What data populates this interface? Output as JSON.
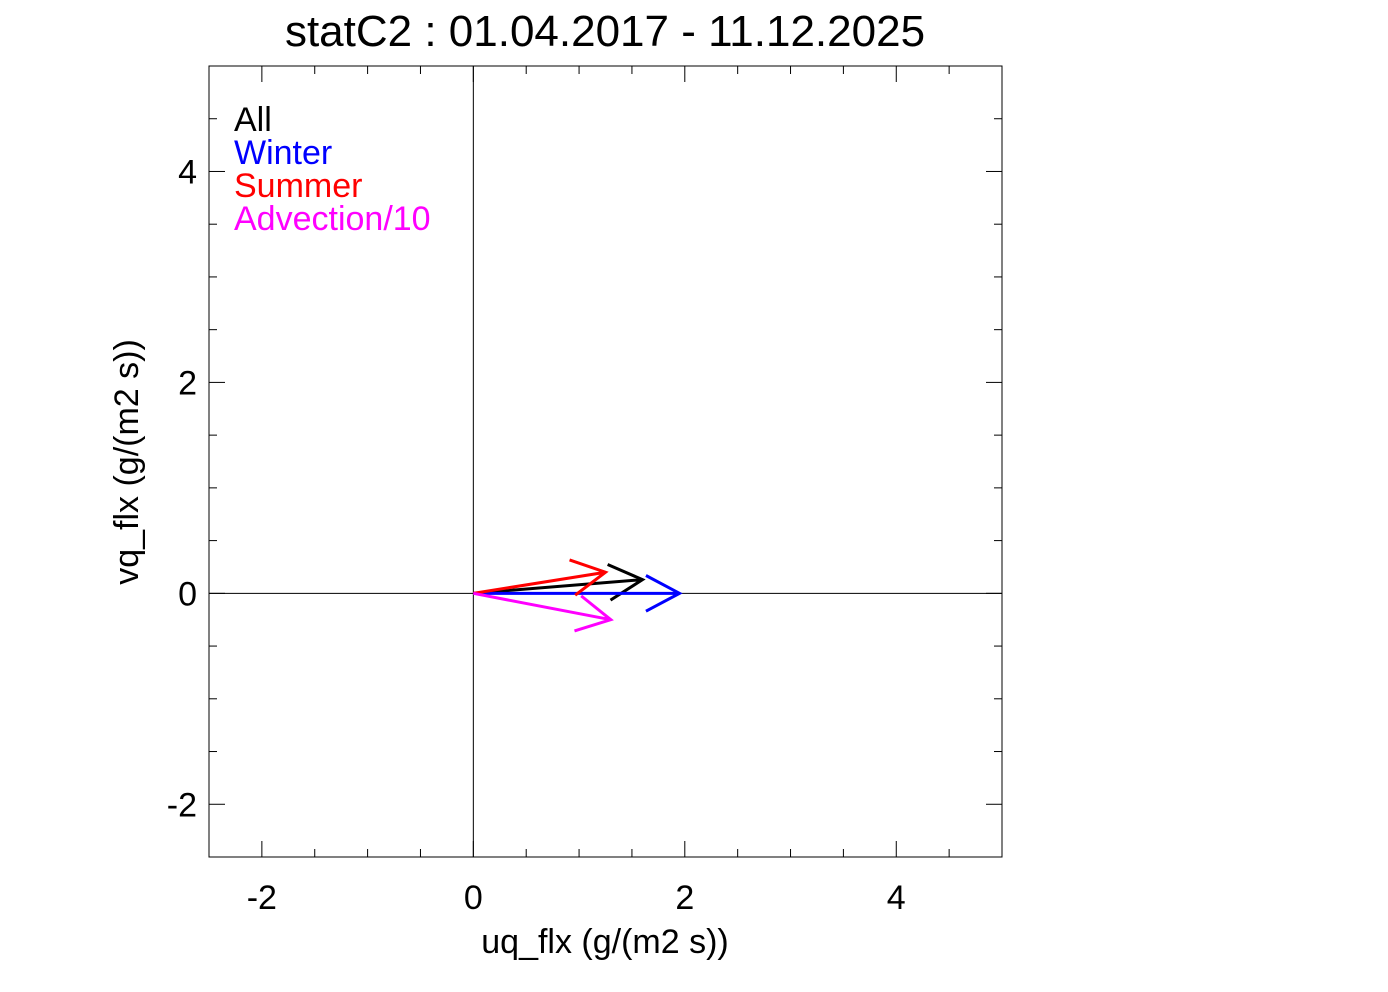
{
  "chart_data": {
    "type": "vector",
    "title": "statC2 : 01.04.2017 - 11.12.2025",
    "xlabel": "uq_flx (g/(m2 s))",
    "ylabel": "vq_flx (g/(m2 s))",
    "xlim": [
      -2.5,
      5.0
    ],
    "ylim": [
      -2.5,
      5.0
    ],
    "xticks": [
      -2,
      0,
      2,
      4
    ],
    "yticks": [
      -2,
      0,
      2,
      4
    ],
    "xtick_labels": [
      "-2",
      "0",
      "2",
      "4"
    ],
    "ytick_labels": [
      "-2",
      "0",
      "2",
      "4"
    ],
    "minor_tick_step": 0.5,
    "zero_lines": true,
    "grid": false,
    "legend_position": "top-left",
    "series": [
      {
        "name": "All",
        "color": "#000000",
        "u": 1.6,
        "v": 0.13
      },
      {
        "name": "Winter",
        "color": "#0000ff",
        "u": 1.95,
        "v": 0.0
      },
      {
        "name": "Summer",
        "color": "#ff0000",
        "u": 1.25,
        "v": 0.2
      },
      {
        "name": "Advection/10",
        "color": "#ff00ff",
        "u": 1.3,
        "v": -0.25
      }
    ]
  }
}
